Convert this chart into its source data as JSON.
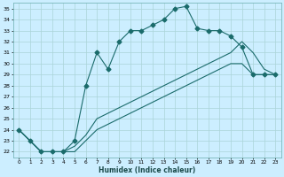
{
  "xlabel": "Humidex (Indice chaleur)",
  "bg_color": "#cceeff",
  "line_color": "#1a6b6b",
  "grid_color": "#aad4d8",
  "xlim": [
    -0.5,
    23.5
  ],
  "ylim": [
    21.5,
    35.5
  ],
  "xticks": [
    0,
    1,
    2,
    3,
    4,
    5,
    6,
    7,
    8,
    9,
    10,
    11,
    12,
    13,
    14,
    15,
    16,
    17,
    18,
    19,
    20,
    21,
    22,
    23
  ],
  "yticks": [
    22,
    23,
    24,
    25,
    26,
    27,
    28,
    29,
    30,
    31,
    32,
    33,
    34,
    35
  ],
  "line1_x": [
    0,
    1,
    2,
    3,
    4,
    5,
    6,
    7,
    8,
    9,
    10,
    11,
    12,
    13,
    14,
    15,
    16,
    17,
    18,
    19,
    20,
    21,
    22,
    23
  ],
  "line1_y": [
    24,
    23,
    22,
    22,
    22,
    23,
    28,
    31,
    29.5,
    32,
    33,
    33,
    33.5,
    34,
    35,
    35.2,
    33.2,
    33,
    33,
    32.5,
    31.5,
    29,
    29,
    29
  ],
  "line2_x": [
    0,
    2,
    3,
    4,
    5,
    6,
    7,
    8,
    9,
    10,
    11,
    12,
    13,
    14,
    15,
    16,
    17,
    18,
    19,
    20,
    21,
    22,
    23
  ],
  "line2_y": [
    24,
    22,
    22,
    22,
    22.5,
    23.5,
    25,
    25.5,
    26,
    26.5,
    27,
    27.5,
    28,
    28.5,
    29,
    29.5,
    30,
    30.5,
    31,
    32,
    31,
    29.5,
    29
  ],
  "line3_x": [
    0,
    2,
    3,
    4,
    5,
    6,
    7,
    8,
    9,
    10,
    11,
    12,
    13,
    14,
    15,
    16,
    17,
    18,
    19,
    20,
    21,
    22,
    23
  ],
  "line3_y": [
    24,
    22,
    22,
    22,
    22,
    23,
    24,
    24.5,
    25,
    25.5,
    26,
    26.5,
    27,
    27.5,
    28,
    28.5,
    29,
    29.5,
    30,
    30,
    29,
    29,
    29
  ],
  "marker": "D",
  "markersize": 2.5,
  "linewidth": 0.8
}
